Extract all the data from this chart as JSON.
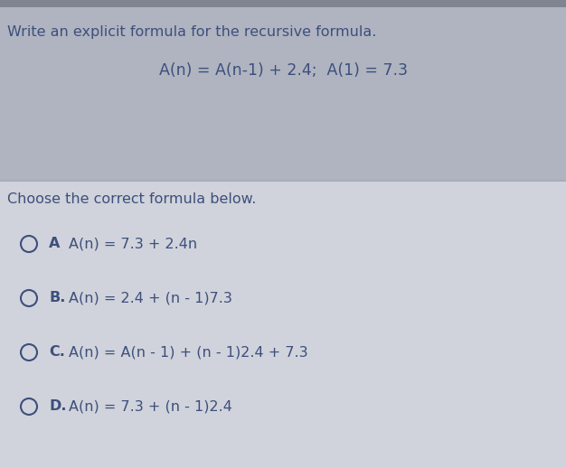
{
  "bg_top": "#b8bcc8",
  "bg_bottom": "#d8dae0",
  "separator_color": "#a0a4b0",
  "title_text": "Write an explicit formula for the recursive formula.",
  "formula_text": "A(n) = A(n-1) + 2.4;  A(1) = 7.3",
  "question_text": "Choose the correct formula below.",
  "options": [
    {
      "label": "A",
      "formula": "A(n) = 7.3 + 2.4n"
    },
    {
      "label": "B.",
      "formula": "A(n) = 2.4 + (n - 1)7.3"
    },
    {
      "label": "C.",
      "formula": "A(n) = A(n - 1) + (n - 1)2.4 + 7.3"
    },
    {
      "label": "D.",
      "formula": "A(n) = 7.3 + (n - 1)2.4"
    }
  ],
  "text_color": "#3d4f7c",
  "circle_color": "#3d4f7c",
  "title_fontsize": 11.5,
  "formula_fontsize": 12.5,
  "question_fontsize": 11.5,
  "option_fontsize": 11.5,
  "figsize": [
    6.26,
    5.18
  ],
  "dpi": 100
}
